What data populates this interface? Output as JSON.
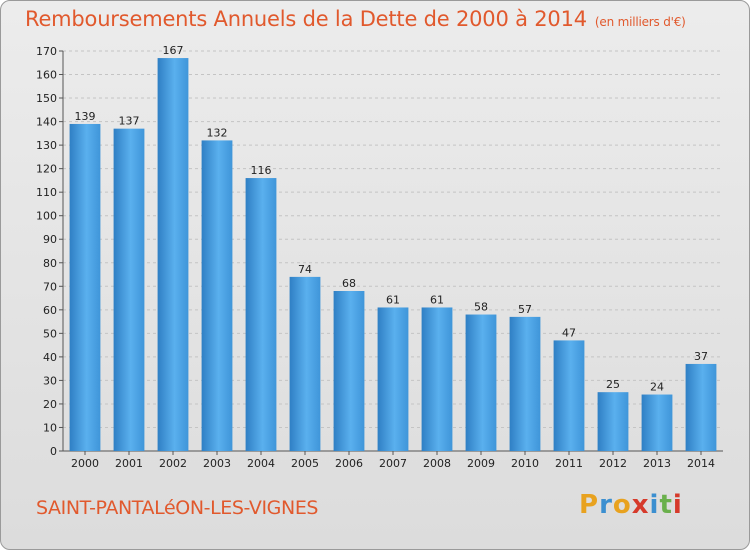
{
  "header": {
    "title": "Remboursements Annuels de la Dette de 2000 à 2014",
    "subtitle": "(en milliers d'€)"
  },
  "footer": {
    "commune": "SAINT-PANTALéON-LES-VIGNES",
    "brand_letters": [
      "P",
      "r",
      "o",
      "x",
      "i",
      "t",
      "i"
    ],
    "brand_colors": [
      "#e8a21f",
      "#3b8fd0",
      "#e8a21f",
      "#d63a2b",
      "#3b8fd0",
      "#6ab04c",
      "#d63a2b"
    ]
  },
  "colors": {
    "bar": "#3f95d9",
    "bar_light": "#5ab0ee",
    "bar_dark": "#2f7fc4",
    "title": "#e1592d"
  },
  "chart_data": {
    "type": "bar",
    "categories": [
      "2000",
      "2001",
      "2002",
      "2003",
      "2004",
      "2005",
      "2006",
      "2007",
      "2008",
      "2009",
      "2010",
      "2011",
      "2012",
      "2013",
      "2014"
    ],
    "values": [
      139,
      137,
      167,
      132,
      116,
      74,
      68,
      61,
      61,
      58,
      57,
      47,
      25,
      24,
      37
    ],
    "title": "Remboursements Annuels de la Dette de 2000 à 2014",
    "subtitle": "(en milliers d'€)",
    "xlabel": "",
    "ylabel": "",
    "ylim": [
      0,
      170
    ],
    "yticks": [
      0,
      10,
      20,
      30,
      40,
      50,
      60,
      70,
      80,
      90,
      100,
      110,
      120,
      130,
      140,
      150,
      160,
      170
    ],
    "grid": true,
    "legend": "none"
  }
}
